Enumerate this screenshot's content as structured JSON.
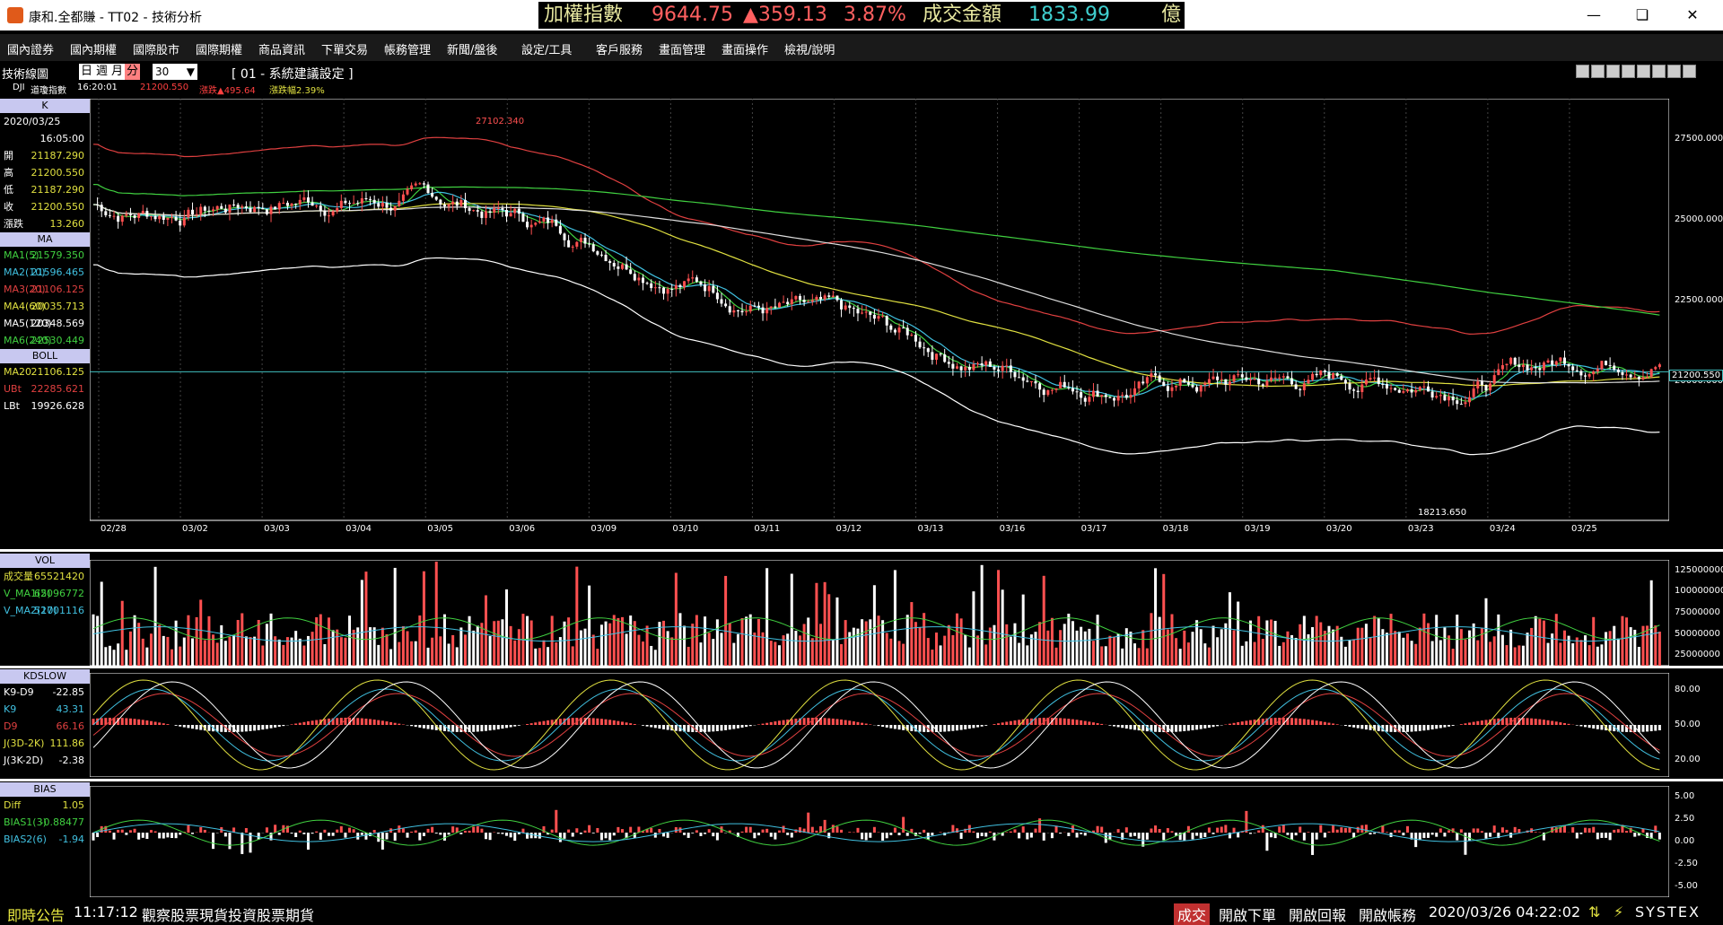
{
  "window": {
    "title": "康和.全都賺 - TT02 - 技術分析"
  },
  "ticker": {
    "name": "加權指數",
    "index": "9644.75",
    "change": "▲359.13",
    "pct": "3.87%",
    "turnover_label": "成交金額",
    "turnover": "1833.99",
    "unit": "億"
  },
  "menu": [
    "國內證券",
    "國內期權",
    "國際股市",
    "國際期權",
    "商品資訊",
    "下單交易",
    "帳務管理",
    "新聞/盤後",
    "設定/工具",
    "客戶服務",
    "畫面管理",
    "畫面操作",
    "檢視/說明"
  ],
  "toolbar": {
    "label": "技術線圖",
    "periods": [
      "日",
      "週",
      "月",
      "分"
    ],
    "active_period": "分",
    "interval": "30",
    "preset": "[ 01 - 系統建議設定 ]"
  },
  "quote_line": {
    "symbol": "DJI",
    "name": "道瓊指數",
    "time": "16:20:01",
    "price": "21200.550",
    "change_label": "漲跌▲495.64",
    "pct_label": "漲跌幅2.39%"
  },
  "k_panel": {
    "header": "K",
    "date": "2020/03/25",
    "time": "16:05:00",
    "rows": [
      {
        "label": "開",
        "value": "21187.290"
      },
      {
        "label": "高",
        "value": "21200.550"
      },
      {
        "label": "低",
        "value": "21187.290"
      },
      {
        "label": "收",
        "value": "21200.550"
      },
      {
        "label": "漲跌",
        "value": "13.260"
      }
    ]
  },
  "ma_panel": {
    "header": "MA",
    "rows": [
      {
        "label": "MA1(5)",
        "value": "21579.350",
        "color": "#40d040"
      },
      {
        "label": "MA2(10)",
        "value": "21596.465",
        "color": "#40c0e0"
      },
      {
        "label": "MA3(20)",
        "value": "21106.125",
        "color": "#e04040"
      },
      {
        "label": "MA4(60)",
        "value": "20035.713",
        "color": "#e0e040"
      },
      {
        "label": "MA5(120)",
        "value": "20348.569",
        "color": "#ffffff"
      },
      {
        "label": "MA6(240)",
        "value": "22530.449",
        "color": "#40d040"
      }
    ]
  },
  "boll_panel": {
    "header": "BOLL",
    "rows": [
      {
        "label": "MA20",
        "value": "21106.125",
        "color": "#e0e040"
      },
      {
        "label": "UBt",
        "value": "22285.621",
        "color": "#e04040"
      },
      {
        "label": "LBt",
        "value": "19926.628",
        "color": "#ffffff"
      }
    ]
  },
  "price_chart": {
    "yticks": [
      "27500.000",
      "25000.000",
      "22500.000",
      "20000.000"
    ],
    "current": "21200.550",
    "high_label": "27102.340",
    "low_label": "18213.650",
    "dates": [
      "02/28",
      "03/02",
      "03/03",
      "03/04",
      "03/05",
      "03/06",
      "03/09",
      "03/10",
      "03/11",
      "03/12",
      "03/13",
      "03/16",
      "03/17",
      "03/18",
      "03/19",
      "03/20",
      "03/23",
      "03/24",
      "03/25"
    ],
    "time_label": "16:05"
  },
  "vol_panel": {
    "header": "VOL",
    "rows": [
      {
        "label": "成交量",
        "value": "65521420",
        "color": "#e0e040"
      },
      {
        "label": "V_MA1(5)",
        "value": "62096772",
        "color": "#40d040"
      },
      {
        "label": "V_MA2(10)",
        "value": "52701116",
        "color": "#40c0e0"
      }
    ],
    "yticks": [
      "125000000",
      "100000000",
      "75000000",
      "50000000",
      "25000000"
    ]
  },
  "kd_panel": {
    "header": "KDSLOW",
    "rows": [
      {
        "label": "K9-D9",
        "value": "-22.85",
        "color": "#ffffff"
      },
      {
        "label": "K9",
        "value": "43.31",
        "color": "#40c0e0"
      },
      {
        "label": "D9",
        "value": "66.16",
        "color": "#e04040"
      },
      {
        "label": "J(3D-2K)",
        "value": "111.86",
        "color": "#e0e040"
      },
      {
        "label": "J(3K-2D)",
        "value": "-2.38",
        "color": "#ffffff"
      }
    ],
    "yticks": [
      "80.00",
      "50.00",
      "20.00"
    ]
  },
  "bias_panel": {
    "header": "BIAS",
    "rows": [
      {
        "label": "Diff",
        "value": "1.05",
        "color": "#e0e040"
      },
      {
        "label": "BIAS1(3)",
        "value": "-0.88477",
        "color": "#40d040"
      },
      {
        "label": "BIAS2(6)",
        "value": "-1.94",
        "color": "#40c0e0"
      }
    ],
    "yticks": [
      "5.00",
      "2.50",
      "0.00",
      "-2.50",
      "-5.00"
    ]
  },
  "status": {
    "announce": "即時公告",
    "time": "11:17:12",
    "message": "觀察股票現貨投資股票期貨",
    "trade": "成交",
    "order": "開啟下單",
    "report": "開啟回報",
    "account": "開啟帳務",
    "datetime": "2020/03/26 04:22:02",
    "brand": "SYSTEX"
  }
}
